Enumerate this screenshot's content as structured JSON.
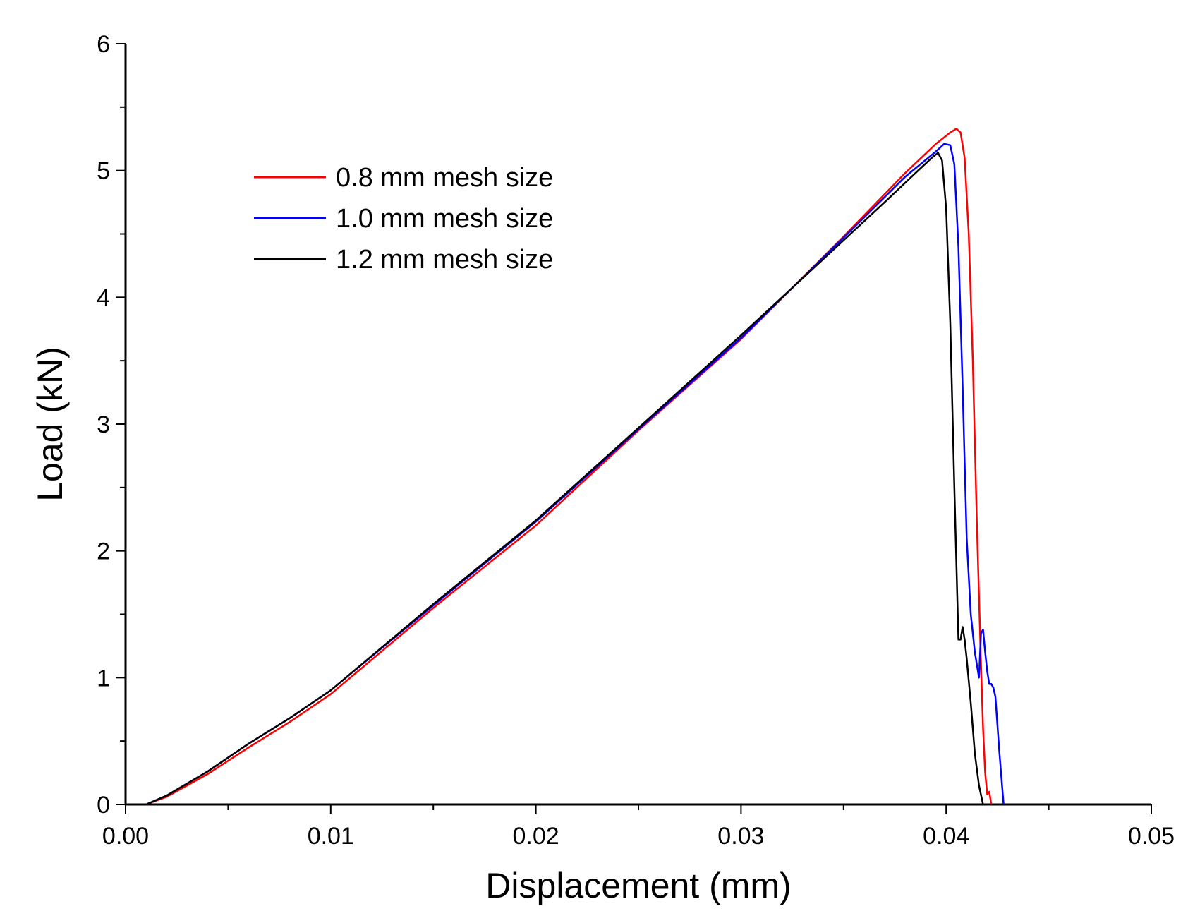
{
  "chart_data": {
    "type": "line",
    "title": "",
    "xlabel": "Displacement (mm)",
    "ylabel": "Load (kN)",
    "xlim": [
      0.0,
      0.05
    ],
    "ylim": [
      0,
      6
    ],
    "x_ticks": [
      "0.00",
      "0.01",
      "0.02",
      "0.03",
      "0.04",
      "0.05"
    ],
    "y_ticks": [
      "0",
      "1",
      "2",
      "3",
      "4",
      "5",
      "6"
    ],
    "grid": false,
    "legend_position": "top-left",
    "series": [
      {
        "name": "0.8 mm mesh size",
        "color": "#ff0000",
        "x": [
          0.001,
          0.002,
          0.004,
          0.006,
          0.008,
          0.01,
          0.015,
          0.02,
          0.025,
          0.03,
          0.035,
          0.038,
          0.0395,
          0.0402,
          0.0405,
          0.0407,
          0.0409,
          0.0411,
          0.0413,
          0.0415,
          0.0417,
          0.0418,
          0.0419,
          0.042,
          0.0421,
          0.0422
        ],
        "y": [
          0.0,
          0.06,
          0.24,
          0.45,
          0.65,
          0.87,
          1.55,
          2.2,
          2.95,
          3.67,
          4.48,
          4.98,
          5.21,
          5.3,
          5.33,
          5.3,
          5.1,
          4.5,
          3.5,
          2.2,
          1.1,
          0.6,
          0.25,
          0.08,
          0.1,
          0.0
        ]
      },
      {
        "name": "1.0 mm mesh size",
        "color": "#0000ff",
        "x": [
          0.001,
          0.002,
          0.004,
          0.006,
          0.008,
          0.01,
          0.015,
          0.02,
          0.025,
          0.03,
          0.035,
          0.038,
          0.0395,
          0.0399,
          0.0402,
          0.0404,
          0.0406,
          0.0408,
          0.041,
          0.0412,
          0.0414,
          0.0416,
          0.0417,
          0.0418,
          0.0419,
          0.042,
          0.0421,
          0.0422,
          0.0423,
          0.0424,
          0.0426,
          0.0428
        ],
        "y": [
          0.0,
          0.07,
          0.26,
          0.48,
          0.68,
          0.9,
          1.57,
          2.23,
          2.96,
          3.68,
          4.47,
          4.95,
          5.15,
          5.21,
          5.2,
          5.05,
          4.4,
          3.3,
          2.1,
          1.5,
          1.2,
          1.0,
          1.35,
          1.38,
          1.2,
          1.05,
          0.95,
          0.95,
          0.92,
          0.85,
          0.4,
          0.0
        ]
      },
      {
        "name": "1.2 mm mesh size",
        "color": "#000000",
        "x": [
          0.001,
          0.002,
          0.004,
          0.006,
          0.008,
          0.01,
          0.015,
          0.02,
          0.025,
          0.03,
          0.035,
          0.037,
          0.0385,
          0.0393,
          0.0396,
          0.0398,
          0.04,
          0.0402,
          0.0404,
          0.0406,
          0.0407,
          0.0408,
          0.0409,
          0.041,
          0.0412,
          0.0414,
          0.0416,
          0.0418
        ],
        "y": [
          0.0,
          0.07,
          0.26,
          0.48,
          0.68,
          0.9,
          1.58,
          2.24,
          2.97,
          3.7,
          4.45,
          4.75,
          4.98,
          5.1,
          5.14,
          5.08,
          4.7,
          3.8,
          2.5,
          1.3,
          1.3,
          1.4,
          1.3,
          1.15,
          0.8,
          0.4,
          0.15,
          0.0
        ]
      }
    ]
  }
}
